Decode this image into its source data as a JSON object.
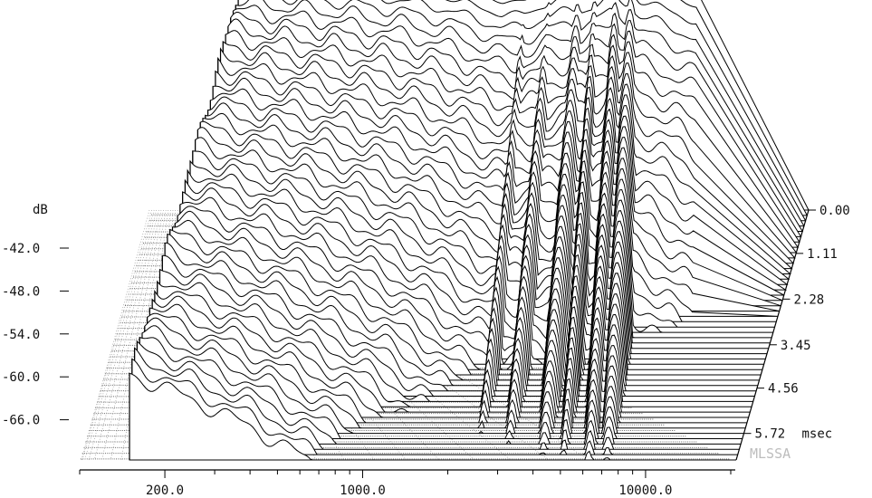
{
  "chart_data": {
    "type": "cumulative spectral decay (waterfall)",
    "z_axis_label": "dB",
    "z_ticks": [
      "-42.0",
      "-48.0",
      "-54.0",
      "-60.0",
      "-66.0"
    ],
    "z_tick_values": [
      -42,
      -48,
      -54,
      -60,
      -66
    ],
    "z_range": [
      -70,
      -37
    ],
    "x_ticks": [
      "200.0",
      "1000.0",
      "10000.0"
    ],
    "x_tick_values": [
      200,
      1000,
      10000
    ],
    "x_range": [
      100,
      20000
    ],
    "x_scale": "log",
    "time_unit": "msec",
    "time_ticks": [
      "0.00",
      "1.11",
      "2.28",
      "3.45",
      "4.56",
      "5.72"
    ],
    "time_tick_values": [
      0.0,
      1.11,
      2.28,
      3.45,
      4.56,
      5.72
    ],
    "time_range": [
      0,
      6.4
    ],
    "slice_count": 48,
    "brand": "MLSSA",
    "colors": {
      "ink": "#000000",
      "fill": "#ffffff",
      "brand": "#bdbdbd"
    },
    "first_slice_response": [
      {
        "f": 150,
        "db": -36.5
      },
      {
        "f": 250,
        "db": -37.0
      },
      {
        "f": 400,
        "db": -37.3
      },
      {
        "f": 700,
        "db": -38.0
      },
      {
        "f": 1000,
        "db": -38.6
      },
      {
        "f": 1400,
        "db": -39.6
      },
      {
        "f": 2000,
        "db": -41.0
      },
      {
        "f": 2500,
        "db": -40.8
      },
      {
        "f": 3200,
        "db": -39.3
      },
      {
        "f": 4000,
        "db": -38.2
      },
      {
        "f": 5000,
        "db": -37.8
      },
      {
        "f": 6000,
        "db": -36.3
      },
      {
        "f": 7000,
        "db": -36.8
      },
      {
        "f": 8000,
        "db": -38.5
      },
      {
        "f": 9500,
        "db": -39.0
      },
      {
        "f": 12000,
        "db": -40.2
      },
      {
        "f": 15000,
        "db": -41.5
      },
      {
        "f": 20000,
        "db": -43.0
      }
    ],
    "decay_db_per_msec": 9.0,
    "resonances_khz": [
      2.5,
      3.2,
      4.3,
      5.1,
      6.3,
      7.3
    ]
  }
}
